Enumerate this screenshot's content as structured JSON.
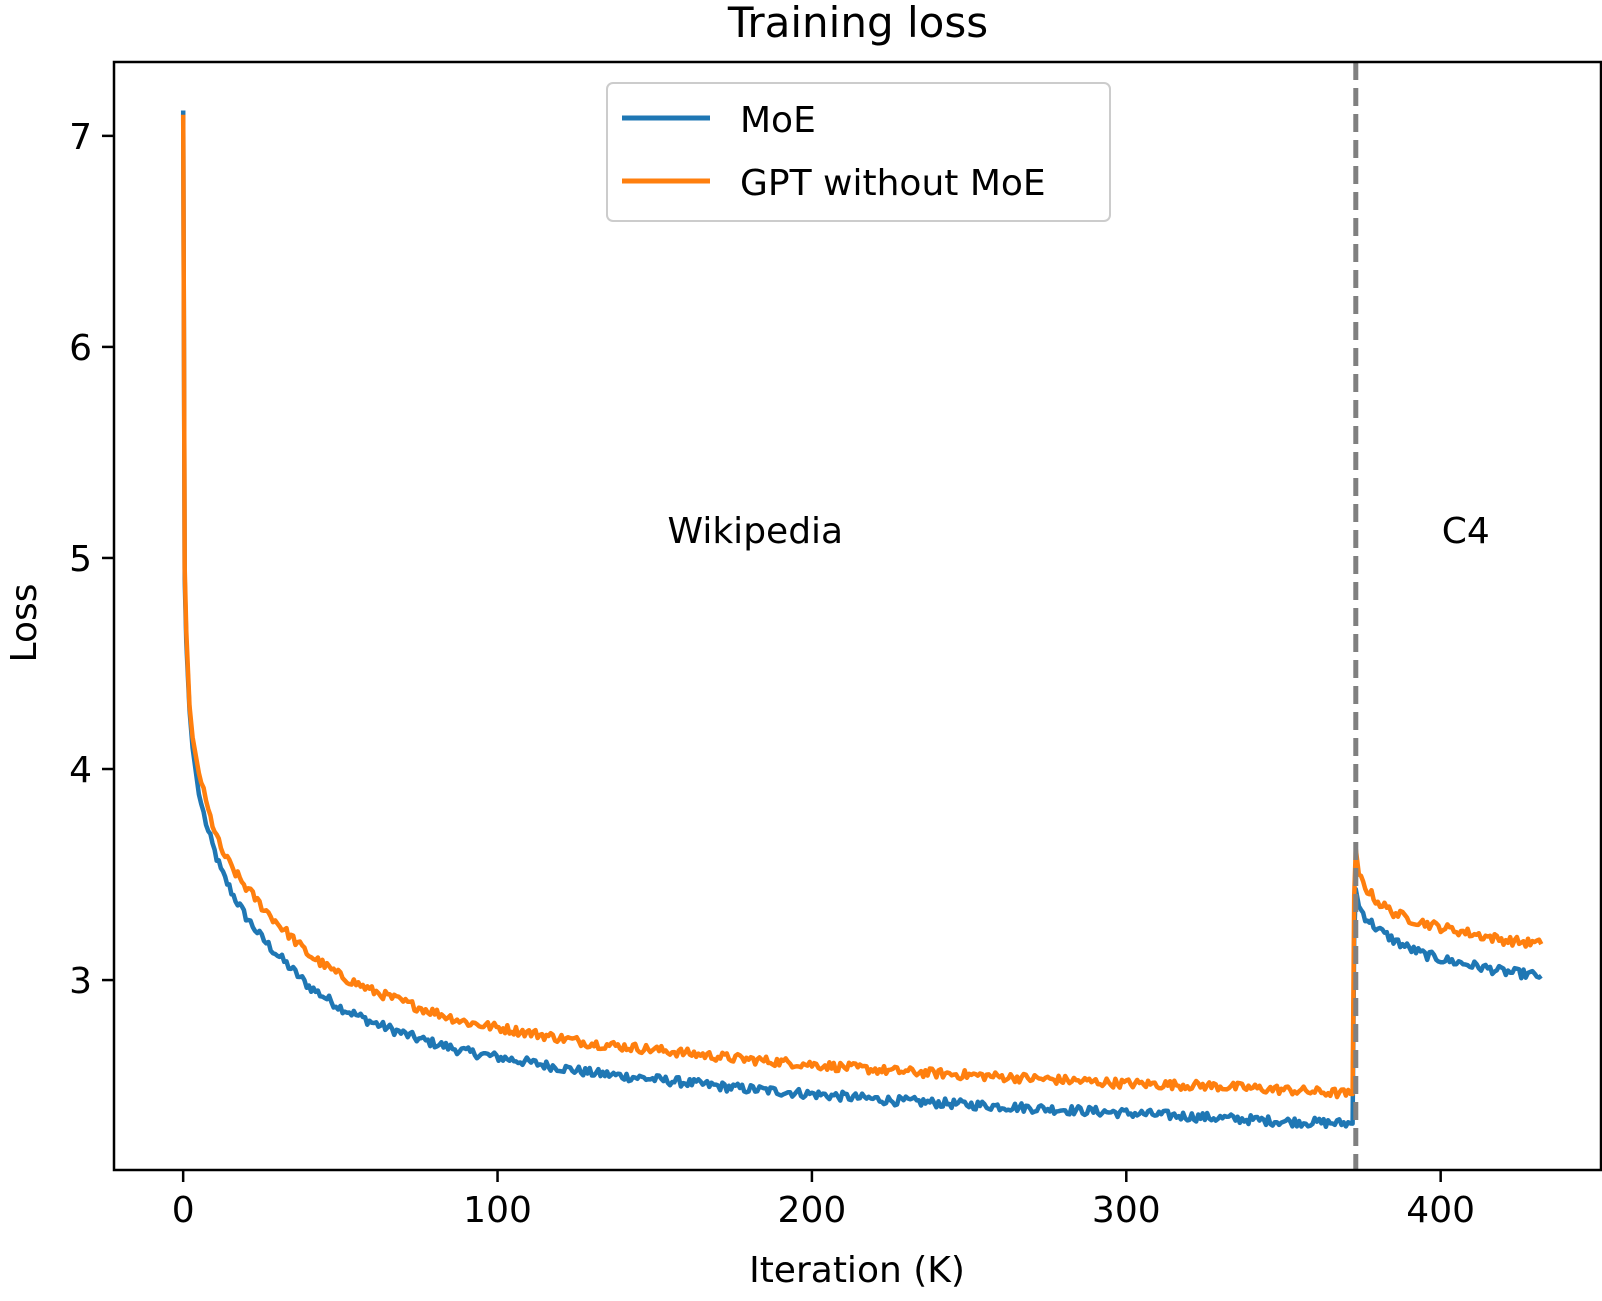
{
  "chart_data": {
    "type": "line",
    "title": "Training loss",
    "xlabel": "Iteration (K)",
    "ylabel": "Loss",
    "xlim": [
      -22,
      451
    ],
    "ylim": [
      2.1,
      7.35
    ],
    "xticks": [
      0,
      100,
      200,
      300,
      400
    ],
    "yticks": [
      3,
      4,
      5,
      6,
      7
    ],
    "grid": false,
    "legend": {
      "position": "top-center"
    },
    "annotations": [
      {
        "text": "Wikipedia",
        "x": 182,
        "y": 5.07
      },
      {
        "text": "C4",
        "x": 408,
        "y": 5.07
      }
    ],
    "vline": {
      "x": 373,
      "color": "#808080",
      "style": "dashed"
    },
    "series": [
      {
        "name": "MoE",
        "color": "#1f77b4",
        "x": [
          0,
          0.5,
          1,
          2,
          3,
          5,
          8,
          12,
          16,
          20,
          25,
          30,
          40,
          50,
          60,
          75,
          90,
          110,
          130,
          150,
          175,
          200,
          225,
          250,
          275,
          300,
          325,
          350,
          372,
          372.5,
          373,
          374,
          376,
          380,
          385,
          390,
          395,
          400,
          410,
          420,
          432
        ],
        "y": [
          7.12,
          4.9,
          4.6,
          4.28,
          4.1,
          3.88,
          3.7,
          3.52,
          3.4,
          3.3,
          3.2,
          3.12,
          2.97,
          2.87,
          2.8,
          2.72,
          2.66,
          2.61,
          2.56,
          2.53,
          2.49,
          2.46,
          2.43,
          2.41,
          2.39,
          2.37,
          2.35,
          2.33,
          2.32,
          3.2,
          3.43,
          3.35,
          3.3,
          3.24,
          3.19,
          3.15,
          3.12,
          3.1,
          3.07,
          3.04,
          3.02
        ]
      },
      {
        "name": "GPT without MoE",
        "color": "#ff7f0e",
        "x": [
          0,
          0.5,
          1,
          2,
          3,
          5,
          8,
          12,
          16,
          20,
          25,
          30,
          40,
          50,
          60,
          75,
          90,
          110,
          130,
          150,
          175,
          200,
          225,
          250,
          275,
          300,
          325,
          350,
          372,
          372.5,
          373,
          374,
          376,
          380,
          385,
          390,
          395,
          400,
          410,
          420,
          432
        ],
        "y": [
          7.1,
          4.95,
          4.65,
          4.3,
          4.15,
          3.98,
          3.8,
          3.62,
          3.52,
          3.44,
          3.35,
          3.27,
          3.12,
          3.02,
          2.95,
          2.87,
          2.8,
          2.75,
          2.7,
          2.67,
          2.63,
          2.6,
          2.57,
          2.55,
          2.53,
          2.51,
          2.5,
          2.48,
          2.46,
          3.4,
          3.62,
          3.5,
          3.44,
          3.37,
          3.32,
          3.29,
          3.27,
          3.25,
          3.22,
          3.19,
          3.17
        ]
      }
    ]
  }
}
